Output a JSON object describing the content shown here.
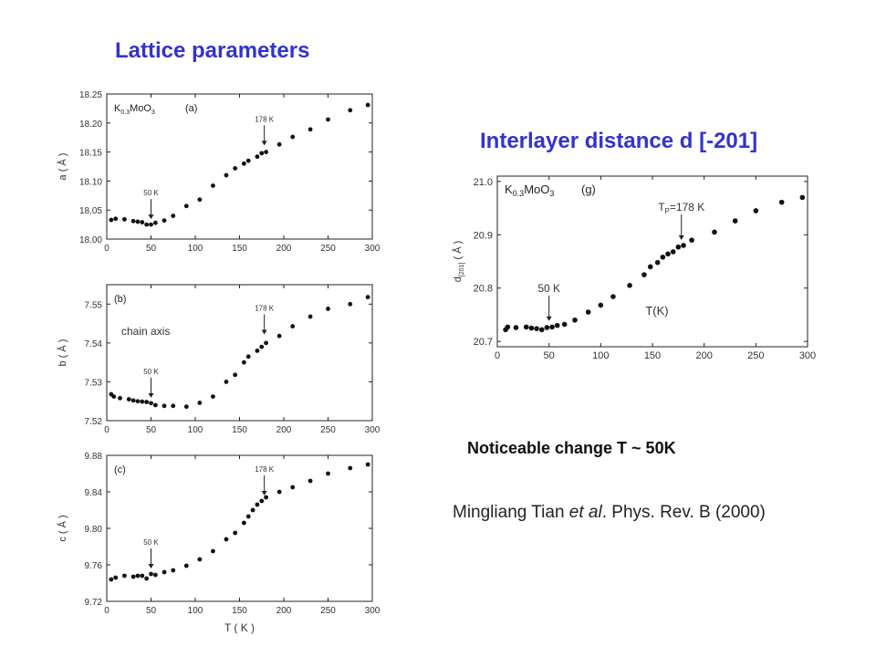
{
  "slide": {
    "title_left": "Lattice parameters",
    "title_right": "Interlayer distance d [-201]",
    "note": "Noticeable change T ~ 50K",
    "citation_author": "Mingliang Tian ",
    "citation_etal": "et al",
    "citation_rest": ". Phys. Rev. B (2000)"
  },
  "colors": {
    "title": "#3333cc",
    "marker": "#111111",
    "axis": "#222222"
  },
  "chart_data": [
    {
      "id": "a",
      "type": "scatter",
      "panel_label": "(a)",
      "compound": [
        "K",
        "0.3",
        "MoO",
        "3"
      ],
      "ylabel": "a ( Å )",
      "xlim": [
        0,
        300
      ],
      "ylim": [
        18.0,
        18.25
      ],
      "xticks": [
        "0",
        "50",
        "100",
        "150",
        "200",
        "250",
        "300"
      ],
      "yticks": [
        "18.00",
        "18.05",
        "18.10",
        "18.15",
        "18.20",
        "18.25"
      ],
      "x": [
        5,
        10,
        20,
        30,
        35,
        40,
        45,
        50,
        55,
        65,
        75,
        90,
        105,
        120,
        135,
        145,
        155,
        160,
        170,
        175,
        180,
        195,
        210,
        230,
        250,
        275,
        295
      ],
      "y": [
        18.033,
        18.035,
        18.034,
        18.031,
        18.03,
        18.029,
        18.025,
        18.025,
        18.028,
        18.032,
        18.04,
        18.057,
        18.068,
        18.092,
        18.11,
        18.122,
        18.13,
        18.135,
        18.142,
        18.148,
        18.15,
        18.163,
        18.176,
        18.189,
        18.206,
        18.222,
        18.231
      ],
      "annotations": [
        {
          "text": "50 K",
          "x": 50,
          "y_tip": 18.025
        },
        {
          "text": "178 K",
          "x": 178,
          "y_tip": 18.152
        }
      ],
      "extra_label": ""
    },
    {
      "id": "b",
      "type": "scatter",
      "panel_label": "(b)",
      "compound": [],
      "ylabel": "b ( Å )",
      "xlim": [
        0,
        300
      ],
      "ylim": [
        7.52,
        7.555
      ],
      "xticks": [
        "0",
        "50",
        "100",
        "150",
        "200",
        "250",
        "300"
      ],
      "yticks": [
        "7.52",
        "7.53",
        "7.54",
        "7.55"
      ],
      "x": [
        5,
        8,
        15,
        25,
        30,
        35,
        40,
        45,
        50,
        55,
        65,
        75,
        90,
        105,
        120,
        135,
        145,
        155,
        160,
        170,
        175,
        180,
        195,
        210,
        230,
        250,
        275,
        295
      ],
      "y": [
        7.5268,
        7.5262,
        7.5258,
        7.5255,
        7.5252,
        7.525,
        7.5249,
        7.5248,
        7.5245,
        7.524,
        7.5238,
        7.5238,
        7.5236,
        7.5246,
        7.5262,
        7.53,
        7.5318,
        7.535,
        7.5365,
        7.538,
        7.539,
        7.54,
        7.5418,
        7.5443,
        7.5468,
        7.5488,
        7.55,
        7.5518
      ],
      "annotations": [
        {
          "text": "50 K",
          "x": 50,
          "y_tip": 7.5245
        },
        {
          "text": "178 K",
          "x": 178,
          "y_tip": 7.5408
        }
      ],
      "extra_label": "chain axis"
    },
    {
      "id": "c",
      "type": "scatter",
      "panel_label": "(c)",
      "compound": [],
      "ylabel": "c ( Å )",
      "xlabel": "T ( K )",
      "xlim": [
        0,
        300
      ],
      "ylim": [
        9.72,
        9.88
      ],
      "xticks": [
        "0",
        "50",
        "100",
        "150",
        "200",
        "250",
        "300"
      ],
      "yticks": [
        "9.72",
        "9.76",
        "9.80",
        "9.84",
        "9.88"
      ],
      "x": [
        5,
        10,
        20,
        30,
        35,
        40,
        45,
        50,
        55,
        65,
        75,
        90,
        105,
        120,
        135,
        145,
        155,
        160,
        165,
        170,
        175,
        180,
        195,
        210,
        230,
        250,
        275,
        295
      ],
      "y": [
        9.744,
        9.746,
        9.748,
        9.747,
        9.748,
        9.748,
        9.745,
        9.75,
        9.749,
        9.752,
        9.754,
        9.759,
        9.766,
        9.775,
        9.788,
        9.795,
        9.806,
        9.813,
        9.82,
        9.826,
        9.83,
        9.834,
        9.84,
        9.845,
        9.852,
        9.86,
        9.866,
        9.87
      ],
      "annotations": [
        {
          "text": "50 K",
          "x": 50,
          "y_tip": 9.75
        },
        {
          "text": "178 K",
          "x": 178,
          "y_tip": 9.83
        }
      ],
      "extra_label": ""
    },
    {
      "id": "g",
      "type": "scatter",
      "panel_label": "(g)",
      "compound": [
        "K",
        "0.3",
        "MoO",
        "3"
      ],
      "ylabel_main": "d",
      "ylabel_sub": "[201]",
      "ylabel_unit": " ( Å )",
      "xlabel": "T(K)",
      "xlim": [
        0,
        300
      ],
      "ylim": [
        20.69,
        21.01
      ],
      "xticks": [
        "0",
        "50",
        "100",
        "150",
        "200",
        "250",
        "300"
      ],
      "yticks": [
        "20.7",
        "20.8",
        "20.9",
        "21.0"
      ],
      "x": [
        8,
        10,
        18,
        28,
        33,
        38,
        43,
        48,
        53,
        58,
        65,
        75,
        88,
        100,
        112,
        128,
        142,
        148,
        155,
        160,
        165,
        170,
        175,
        180,
        188,
        210,
        230,
        250,
        275,
        295
      ],
      "y": [
        20.722,
        20.727,
        20.726,
        20.727,
        20.725,
        20.724,
        20.722,
        20.726,
        20.727,
        20.73,
        20.732,
        20.74,
        20.755,
        20.768,
        20.784,
        20.805,
        20.825,
        20.84,
        20.848,
        20.858,
        20.864,
        20.868,
        20.877,
        20.88,
        20.89,
        20.905,
        20.926,
        20.945,
        20.961,
        20.97
      ],
      "annotations": [
        {
          "text": "50 K",
          "x": 50,
          "y_tip": 20.728
        },
        {
          "text_main": "T",
          "text_sub": "P",
          "text_rest": "=178 K",
          "x": 178,
          "y_tip": 20.88
        }
      ],
      "extra_label": ""
    }
  ]
}
